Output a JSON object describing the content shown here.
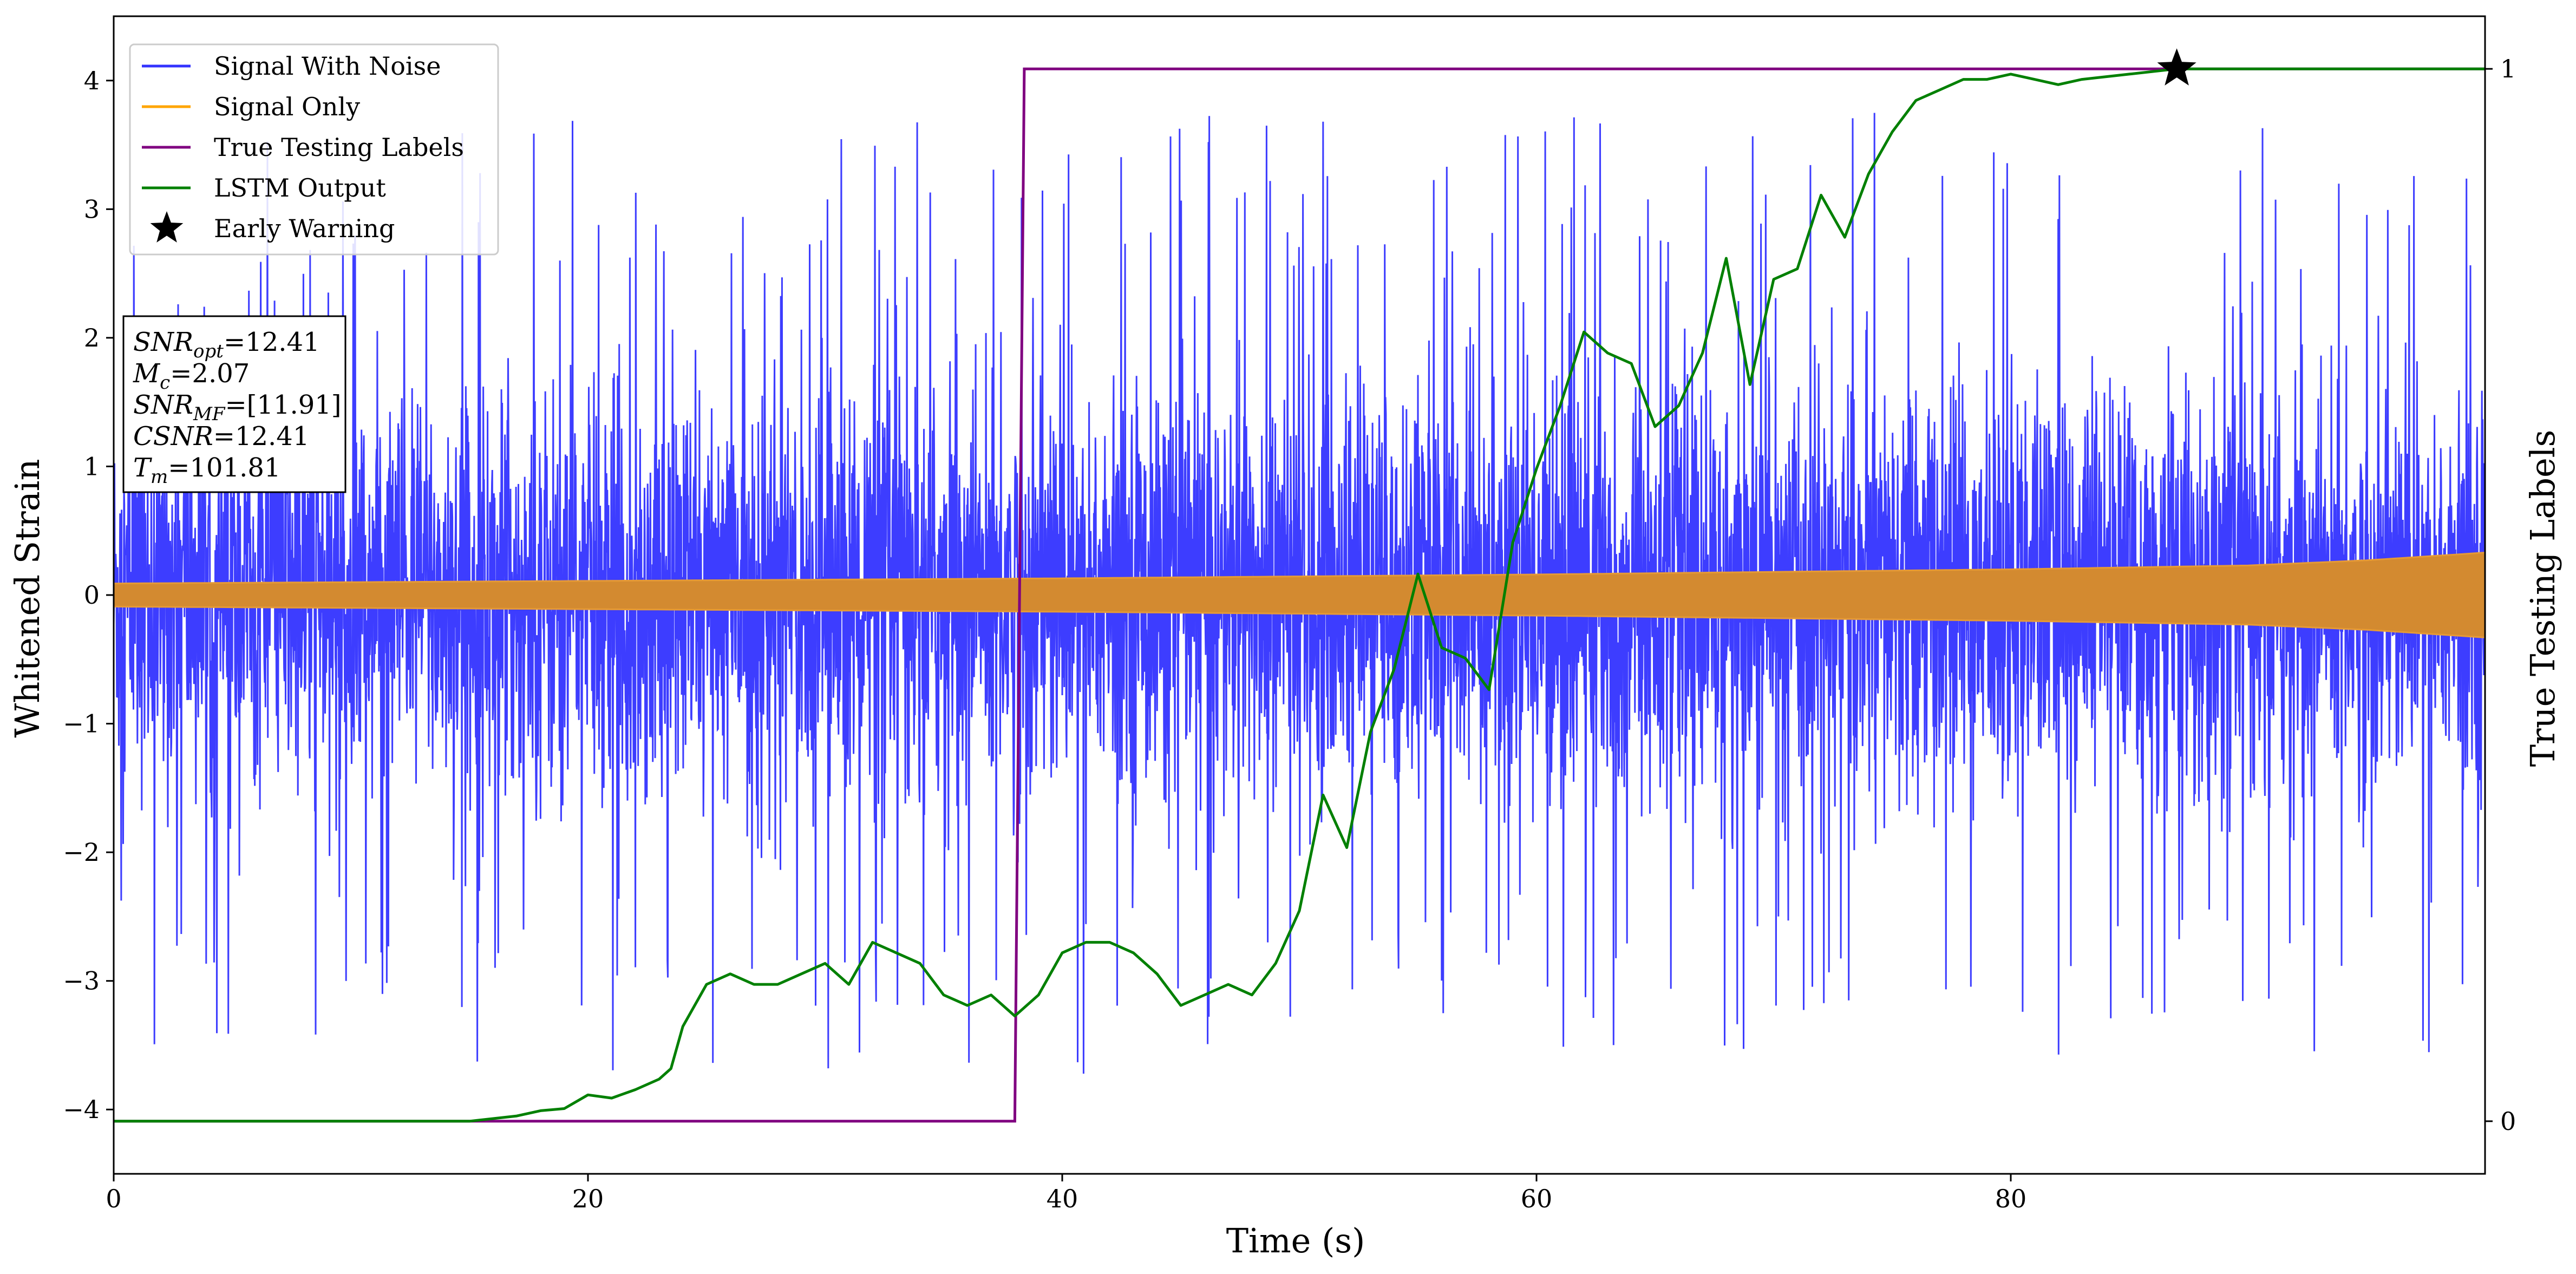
{
  "chart_data": {
    "type": "line",
    "xlabel": "Time (s)",
    "ylabel": "Whitened Strain",
    "y2label": "True Testing Labels",
    "xlim": [
      0,
      100
    ],
    "ylim": [
      -4.5,
      4.5
    ],
    "y2lim": [
      -0.05,
      1.05
    ],
    "xticks": [
      0,
      20,
      40,
      60,
      80
    ],
    "yticks": [
      -4,
      -3,
      -2,
      -1,
      0,
      1,
      2,
      3,
      4
    ],
    "y2ticks": [
      0,
      1
    ],
    "legend_position": "top-left",
    "series": [
      {
        "name": "Signal With Noise",
        "axis": "left",
        "color": "#3333ff",
        "representation": "dense noisy oscillation",
        "envelope_x": [
          0,
          10,
          20,
          30,
          40,
          50,
          60,
          70,
          80,
          90,
          100
        ],
        "envelope_low": [
          -2.3,
          -2.4,
          -2.4,
          -2.5,
          -2.5,
          -2.4,
          -2.5,
          -2.5,
          -2.4,
          -2.4,
          -2.3
        ],
        "envelope_high": [
          2.2,
          2.3,
          2.4,
          2.4,
          2.5,
          2.4,
          2.5,
          2.5,
          2.4,
          2.4,
          2.3
        ]
      },
      {
        "name": "Signal Only",
        "axis": "left",
        "color": "#ffa500",
        "representation": "chirp envelope",
        "envelope_x": [
          0,
          20,
          40,
          60,
          80,
          90,
          95,
          100
        ],
        "amplitude": [
          0.09,
          0.11,
          0.13,
          0.16,
          0.2,
          0.23,
          0.27,
          0.33
        ]
      },
      {
        "name": "True Testing Labels",
        "axis": "right",
        "color": "#800080",
        "x": [
          0,
          38,
          38.4,
          100
        ],
        "y": [
          0,
          0,
          1,
          1
        ]
      },
      {
        "name": "LSTM Output",
        "axis": "right",
        "color": "#008000",
        "x": [
          0,
          15,
          17,
          18,
          19,
          20,
          21,
          22,
          23,
          23.5,
          24,
          25,
          26,
          27,
          28,
          29,
          30,
          31,
          32,
          33,
          34,
          35,
          36,
          37,
          38,
          39,
          40,
          41,
          42,
          43,
          44,
          45,
          46,
          47,
          48,
          49,
          50,
          51,
          52,
          53,
          54,
          55,
          56,
          57,
          58,
          59,
          60,
          61,
          62,
          63,
          64,
          65,
          66,
          67,
          68,
          69,
          70,
          71,
          72,
          73,
          74,
          75,
          76,
          77,
          78,
          79,
          80,
          81,
          82,
          83,
          85,
          87,
          90,
          95,
          100
        ],
        "y": [
          0,
          0,
          0.005,
          0.01,
          0.012,
          0.025,
          0.022,
          0.03,
          0.04,
          0.05,
          0.09,
          0.13,
          0.14,
          0.13,
          0.13,
          0.14,
          0.15,
          0.13,
          0.17,
          0.16,
          0.15,
          0.12,
          0.11,
          0.12,
          0.1,
          0.12,
          0.16,
          0.17,
          0.17,
          0.16,
          0.14,
          0.11,
          0.12,
          0.13,
          0.12,
          0.15,
          0.2,
          0.31,
          0.26,
          0.37,
          0.43,
          0.52,
          0.45,
          0.44,
          0.41,
          0.55,
          0.62,
          0.68,
          0.75,
          0.73,
          0.72,
          0.66,
          0.68,
          0.73,
          0.82,
          0.7,
          0.8,
          0.81,
          0.88,
          0.84,
          0.9,
          0.94,
          0.97,
          0.98,
          0.99,
          0.99,
          0.995,
          0.99,
          0.985,
          0.99,
          0.995,
          1.0,
          1.0,
          1.0,
          1.0
        ]
      }
    ],
    "markers": [
      {
        "name": "Early Warning",
        "axis": "right",
        "x": 87,
        "y": 1.0,
        "shape": "star",
        "color": "#000000"
      }
    ],
    "legend": [
      {
        "label": "Signal With Noise",
        "color": "#3333ff",
        "kind": "line"
      },
      {
        "label": "Signal Only",
        "color": "#ffa500",
        "kind": "line"
      },
      {
        "label": "True Testing Labels",
        "color": "#800080",
        "kind": "line"
      },
      {
        "label": "LSTM Output",
        "color": "#008000",
        "kind": "line"
      },
      {
        "label": "Early Warning",
        "color": "#000000",
        "kind": "star"
      }
    ],
    "annotations": [
      {
        "base": "SNR",
        "sub": "opt",
        "value": "=12.41"
      },
      {
        "base": "M",
        "sub": "c",
        "value": "=2.07"
      },
      {
        "base": "SNR",
        "sub": "MF",
        "value": "=[11.91]"
      },
      {
        "base": "CSNR",
        "sub": "",
        "value": "=12.41"
      },
      {
        "base": "T",
        "sub": "m",
        "value": "=101.81"
      }
    ]
  }
}
